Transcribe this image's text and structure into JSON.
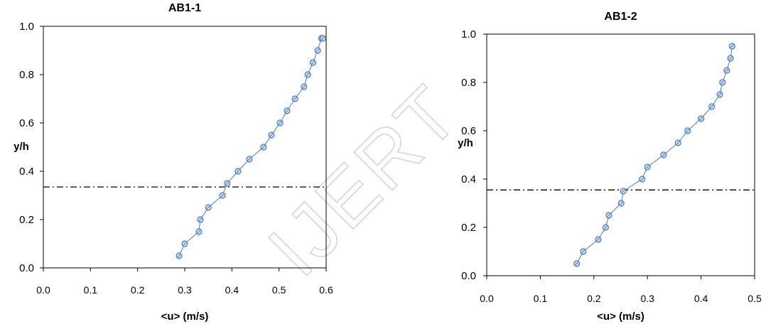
{
  "watermark": "IJERT",
  "chart_data": [
    {
      "type": "scatter",
      "title": "AB1-1",
      "xlabel": "<u> (m/s)",
      "ylabel": "y/h",
      "xlim": [
        0,
        0.6
      ],
      "ylim": [
        0,
        1.0
      ],
      "xticks": [
        "0.0",
        "0.1",
        "0.2",
        "0.3",
        "0.4",
        "0.5",
        "0.6"
      ],
      "yticks": [
        "0.0",
        "0.2",
        "0.4",
        "0.6",
        "0.8",
        "1.0"
      ],
      "grid": false,
      "series": [
        {
          "color": "#4a7ebb",
          "marker": "circle",
          "line": true,
          "x": [
            0.288,
            0.3,
            0.33,
            0.333,
            0.35,
            0.38,
            0.39,
            0.413,
            0.437,
            0.467,
            0.484,
            0.502,
            0.517,
            0.534,
            0.553,
            0.561,
            0.572,
            0.582,
            0.59,
            0.593
          ],
          "y": [
            0.05,
            0.1,
            0.15,
            0.2,
            0.25,
            0.3,
            0.35,
            0.4,
            0.45,
            0.5,
            0.55,
            0.6,
            0.65,
            0.7,
            0.75,
            0.8,
            0.85,
            0.9,
            0.95,
            0.95
          ]
        }
      ],
      "reference_line": {
        "y": 0.335,
        "style": "dash-dot",
        "color": "#000000"
      }
    },
    {
      "type": "scatter",
      "title": "AB1-2",
      "xlabel": "<u> (m/s)",
      "ylabel": "y/h",
      "xlim": [
        0,
        0.5
      ],
      "ylim": [
        0,
        1.0
      ],
      "xticks": [
        "0.0",
        "0.1",
        "0.2",
        "0.3",
        "0.4",
        "0.5"
      ],
      "yticks": [
        "0.0",
        "0.2",
        "0.4",
        "0.6",
        "0.8",
        "1.0"
      ],
      "grid": false,
      "series": [
        {
          "color": "#4a7ebb",
          "marker": "circle",
          "line": true,
          "x": [
            0.168,
            0.18,
            0.208,
            0.222,
            0.228,
            0.251,
            0.255,
            0.29,
            0.3,
            0.33,
            0.357,
            0.375,
            0.4,
            0.42,
            0.435,
            0.44,
            0.448,
            0.455,
            0.458
          ],
          "y": [
            0.05,
            0.1,
            0.15,
            0.2,
            0.25,
            0.3,
            0.35,
            0.4,
            0.45,
            0.5,
            0.55,
            0.6,
            0.65,
            0.7,
            0.75,
            0.8,
            0.85,
            0.9,
            0.95
          ]
        }
      ],
      "reference_line": {
        "y": 0.355,
        "style": "dash-dot",
        "color": "#000000"
      }
    }
  ]
}
